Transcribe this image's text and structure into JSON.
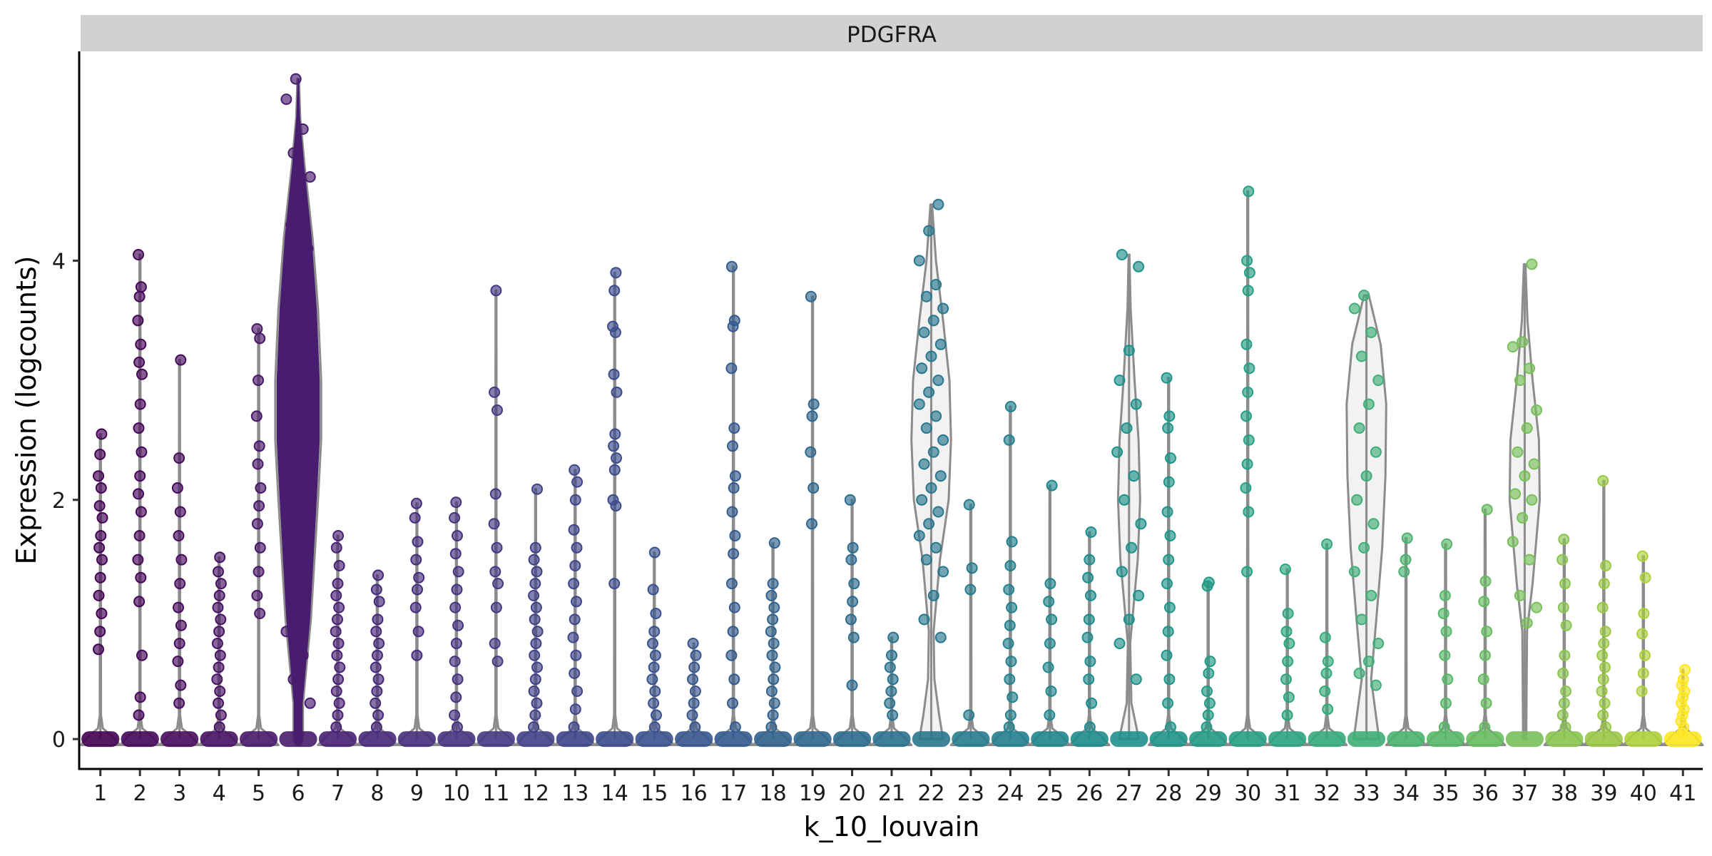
{
  "chart_data": {
    "type": "violin",
    "title": "",
    "facet_label": "PDGFRA",
    "xlabel": "k_10_louvain",
    "ylabel": "Expression (logcounts)",
    "ylim": [
      -0.25,
      5.75
    ],
    "yticks": [
      0,
      2,
      4
    ],
    "ytick_labels": [
      "0",
      "2",
      "4"
    ],
    "grid": false,
    "legend": "none",
    "categories": [
      "1",
      "2",
      "3",
      "4",
      "5",
      "6",
      "7",
      "8",
      "9",
      "10",
      "11",
      "12",
      "13",
      "14",
      "15",
      "16",
      "17",
      "18",
      "19",
      "20",
      "21",
      "22",
      "23",
      "24",
      "25",
      "26",
      "27",
      "28",
      "29",
      "30",
      "31",
      "32",
      "33",
      "34",
      "35",
      "36",
      "37",
      "38",
      "39",
      "40",
      "41"
    ],
    "colors": [
      "#440154",
      "#450559",
      "#470b5e",
      "#471164",
      "#481769",
      "#481c6e",
      "#482173",
      "#472878",
      "#462d7c",
      "#453380",
      "#433a83",
      "#414087",
      "#3e4589",
      "#3b4b8c",
      "#39518d",
      "#37568e",
      "#345b8e",
      "#31628e",
      "#2f678e",
      "#2c6c8e",
      "#2a718e",
      "#28778e",
      "#267c8e",
      "#24808e",
      "#21868d",
      "#1f8b8c",
      "#1e908b",
      "#1f9589",
      "#219b86",
      "#25a083",
      "#2ba580",
      "#34aa7c",
      "#3fae76",
      "#4bb26f",
      "#57b869",
      "#67bc61",
      "#78c05a",
      "#89c550",
      "#9ac945",
      "#aed13c",
      "#fde725"
    ],
    "max_values": [
      2.55,
      4.05,
      3.17,
      1.52,
      3.43,
      5.52,
      1.7,
      1.37,
      1.97,
      1.98,
      3.75,
      2.09,
      2.25,
      3.9,
      1.56,
      0.8,
      3.95,
      1.64,
      3.7,
      2.0,
      0.85,
      4.47,
      1.96,
      2.78,
      2.12,
      1.73,
      4.05,
      3.02,
      1.31,
      4.58,
      1.42,
      1.63,
      3.71,
      1.68,
      1.63,
      1.92,
      3.97,
      1.67,
      2.16,
      1.53,
      0.58
    ],
    "points_by_category": [
      [
        0.75,
        0.9,
        1.05,
        1.2,
        1.35,
        1.5,
        1.6,
        1.7,
        1.85,
        1.95,
        2.1,
        2.2,
        2.38,
        2.55
      ],
      [
        0.2,
        0.35,
        0.7,
        1.15,
        1.35,
        1.5,
        1.7,
        1.9,
        2.05,
        2.2,
        2.4,
        2.6,
        2.8,
        3.05,
        3.15,
        3.3,
        3.5,
        3.7,
        3.78,
        4.05
      ],
      [
        0.3,
        0.45,
        0.65,
        0.8,
        0.95,
        1.1,
        1.3,
        1.5,
        1.7,
        1.9,
        2.1,
        2.35,
        3.17
      ],
      [
        0.1,
        0.2,
        0.3,
        0.4,
        0.5,
        0.6,
        0.7,
        0.8,
        0.9,
        1.0,
        1.1,
        1.2,
        1.3,
        1.4,
        1.52
      ],
      [
        1.05,
        1.2,
        1.4,
        1.6,
        1.8,
        1.95,
        2.1,
        2.3,
        2.45,
        2.7,
        3.0,
        3.35,
        3.43
      ],
      [
        0.3,
        0.5,
        0.7,
        0.9,
        1.1,
        1.3,
        1.5,
        1.7,
        1.9,
        2.1,
        2.3,
        2.5,
        2.7,
        2.9,
        3.1,
        3.3,
        3.5,
        3.7,
        3.9,
        4.1,
        4.3,
        4.5,
        4.7,
        4.9,
        5.1,
        5.35,
        5.52
      ],
      [
        0.1,
        0.2,
        0.3,
        0.4,
        0.5,
        0.6,
        0.7,
        0.8,
        0.9,
        1.0,
        1.1,
        1.2,
        1.3,
        1.45,
        1.6,
        1.7
      ],
      [
        0.1,
        0.2,
        0.3,
        0.4,
        0.5,
        0.6,
        0.7,
        0.8,
        0.9,
        1.0,
        1.15,
        1.25,
        1.37
      ],
      [
        0.7,
        0.9,
        1.1,
        1.25,
        1.35,
        1.5,
        1.65,
        1.85,
        1.97
      ],
      [
        0.1,
        0.2,
        0.35,
        0.5,
        0.65,
        0.8,
        0.95,
        1.1,
        1.25,
        1.4,
        1.55,
        1.7,
        1.85,
        1.98
      ],
      [
        0.65,
        0.8,
        1.1,
        1.3,
        1.4,
        1.6,
        1.8,
        2.05,
        2.75,
        2.9,
        3.75
      ],
      [
        0.1,
        0.2,
        0.3,
        0.4,
        0.5,
        0.6,
        0.7,
        0.8,
        0.9,
        1.0,
        1.1,
        1.2,
        1.3,
        1.4,
        1.5,
        1.6,
        2.09
      ],
      [
        0.1,
        0.25,
        0.4,
        0.55,
        0.7,
        0.85,
        1.0,
        1.15,
        1.3,
        1.45,
        1.6,
        1.75,
        2.0,
        2.15,
        2.25
      ],
      [
        1.3,
        1.95,
        2.0,
        2.25,
        2.35,
        2.45,
        2.55,
        2.9,
        3.05,
        3.4,
        3.45,
        3.75,
        3.9
      ],
      [
        0.1,
        0.2,
        0.3,
        0.4,
        0.5,
        0.6,
        0.7,
        0.8,
        0.9,
        1.05,
        1.25,
        1.56
      ],
      [
        0.1,
        0.2,
        0.3,
        0.4,
        0.5,
        0.6,
        0.7,
        0.8
      ],
      [
        0.1,
        0.3,
        0.5,
        0.7,
        0.9,
        1.1,
        1.3,
        1.55,
        1.7,
        1.9,
        2.1,
        2.2,
        2.45,
        2.6,
        3.1,
        3.45,
        3.5,
        3.95
      ],
      [
        0.1,
        0.2,
        0.3,
        0.4,
        0.5,
        0.6,
        0.7,
        0.8,
        0.9,
        1.0,
        1.1,
        1.2,
        1.3,
        1.64
      ],
      [
        1.8,
        2.1,
        2.4,
        2.7,
        2.8,
        3.7
      ],
      [
        0.45,
        0.85,
        1.0,
        1.15,
        1.3,
        1.5,
        1.6,
        2.0
      ],
      [
        0.2,
        0.3,
        0.4,
        0.5,
        0.6,
        0.7,
        0.85
      ],
      [
        0.85,
        1.0,
        1.2,
        1.4,
        1.5,
        1.6,
        1.7,
        1.8,
        1.9,
        2.0,
        2.1,
        2.2,
        2.3,
        2.4,
        2.5,
        2.6,
        2.7,
        2.8,
        2.9,
        3.0,
        3.1,
        3.2,
        3.3,
        3.4,
        3.5,
        3.6,
        3.7,
        3.8,
        4.0,
        4.25,
        4.47
      ],
      [
        0.2,
        1.25,
        1.43,
        1.96
      ],
      [
        0.1,
        0.2,
        0.35,
        0.5,
        0.65,
        0.8,
        0.95,
        1.1,
        1.25,
        1.45,
        1.65,
        2.5,
        2.78
      ],
      [
        0.2,
        0.4,
        0.6,
        0.8,
        1.0,
        1.15,
        1.3,
        2.12
      ],
      [
        0.1,
        0.3,
        0.5,
        0.65,
        0.85,
        1.0,
        1.2,
        1.35,
        1.5,
        1.73
      ],
      [
        0.5,
        0.8,
        1.0,
        1.2,
        1.4,
        1.6,
        1.8,
        2.0,
        2.2,
        2.4,
        2.6,
        2.8,
        3.0,
        3.25,
        3.95,
        4.05
      ],
      [
        0.1,
        0.3,
        0.5,
        0.7,
        0.9,
        1.1,
        1.3,
        1.5,
        1.7,
        1.9,
        2.15,
        2.35,
        2.6,
        2.7,
        3.02
      ],
      [
        0.1,
        0.2,
        0.3,
        0.4,
        0.55,
        0.65,
        1.28,
        1.31
      ],
      [
        1.4,
        1.9,
        2.1,
        2.3,
        2.5,
        2.7,
        2.9,
        3.1,
        3.3,
        3.75,
        3.9,
        4.0,
        4.58
      ],
      [
        0.2,
        0.35,
        0.5,
        0.65,
        0.8,
        0.9,
        1.05,
        1.42
      ],
      [
        0.25,
        0.4,
        0.55,
        0.65,
        0.85,
        1.63
      ],
      [
        0.45,
        0.55,
        0.65,
        0.8,
        1.0,
        1.2,
        1.4,
        1.6,
        1.8,
        2.0,
        2.2,
        2.4,
        2.6,
        2.8,
        3.0,
        3.2,
        3.4,
        3.6,
        3.71
      ],
      [
        1.4,
        1.5,
        1.68
      ],
      [
        0.1,
        0.3,
        0.5,
        0.7,
        0.9,
        1.05,
        1.2,
        1.63
      ],
      [
        0.1,
        0.3,
        0.5,
        0.7,
        0.9,
        1.15,
        1.32,
        1.92
      ],
      [
        0.97,
        1.1,
        1.2,
        1.5,
        1.65,
        1.85,
        2.0,
        2.05,
        2.2,
        2.3,
        2.4,
        2.6,
        2.75,
        3.0,
        3.1,
        3.28,
        3.32,
        3.97
      ],
      [
        0.1,
        0.2,
        0.3,
        0.4,
        0.55,
        0.7,
        0.95,
        1.1,
        1.3,
        1.5,
        1.67
      ],
      [
        0.1,
        0.2,
        0.3,
        0.4,
        0.5,
        0.6,
        0.7,
        0.8,
        0.9,
        1.1,
        1.3,
        1.45,
        2.16
      ],
      [
        0.4,
        0.55,
        0.7,
        0.88,
        1.05,
        1.35,
        1.53
      ],
      [
        0.05,
        0.1,
        0.15,
        0.2,
        0.25,
        0.3,
        0.35,
        0.4,
        0.45,
        0.5,
        0.58
      ]
    ],
    "violin_shapes": [
      {
        "category": "6",
        "profile": [
          [
            -0.05,
            0.06
          ],
          [
            0.0,
            0.12
          ],
          [
            0.3,
            0.12
          ],
          [
            1.0,
            0.32
          ],
          [
            2.0,
            0.5
          ],
          [
            2.5,
            0.58
          ],
          [
            3.0,
            0.58
          ],
          [
            3.6,
            0.5
          ],
          [
            4.2,
            0.36
          ],
          [
            4.8,
            0.16
          ],
          [
            5.2,
            0.05
          ],
          [
            5.52,
            0.02
          ]
        ]
      },
      {
        "category": "22",
        "profile": [
          [
            0.0,
            0.3
          ],
          [
            0.2,
            0.2
          ],
          [
            0.5,
            0.08
          ],
          [
            0.9,
            0.06
          ],
          [
            1.5,
            0.22
          ],
          [
            2.0,
            0.44
          ],
          [
            2.5,
            0.5
          ],
          [
            3.0,
            0.46
          ],
          [
            3.5,
            0.3
          ],
          [
            4.0,
            0.12
          ],
          [
            4.47,
            0.02
          ]
        ]
      },
      {
        "category": "27",
        "profile": [
          [
            0.0,
            0.25
          ],
          [
            0.3,
            0.06
          ],
          [
            0.8,
            0.03
          ],
          [
            1.5,
            0.22
          ],
          [
            2.0,
            0.28
          ],
          [
            2.5,
            0.24
          ],
          [
            3.0,
            0.14
          ],
          [
            3.6,
            0.04
          ],
          [
            4.05,
            0.01
          ]
        ]
      },
      {
        "category": "33",
        "profile": [
          [
            0.0,
            0.32
          ],
          [
            0.5,
            0.12
          ],
          [
            1.0,
            0.25
          ],
          [
            1.6,
            0.4
          ],
          [
            2.2,
            0.48
          ],
          [
            2.8,
            0.5
          ],
          [
            3.3,
            0.36
          ],
          [
            3.71,
            0.06
          ]
        ]
      },
      {
        "category": "37",
        "profile": [
          [
            0.0,
            0.04
          ],
          [
            0.9,
            0.06
          ],
          [
            1.3,
            0.2
          ],
          [
            2.0,
            0.38
          ],
          [
            2.5,
            0.36
          ],
          [
            3.0,
            0.2
          ],
          [
            3.5,
            0.07
          ],
          [
            3.97,
            0.02
          ]
        ]
      }
    ]
  }
}
